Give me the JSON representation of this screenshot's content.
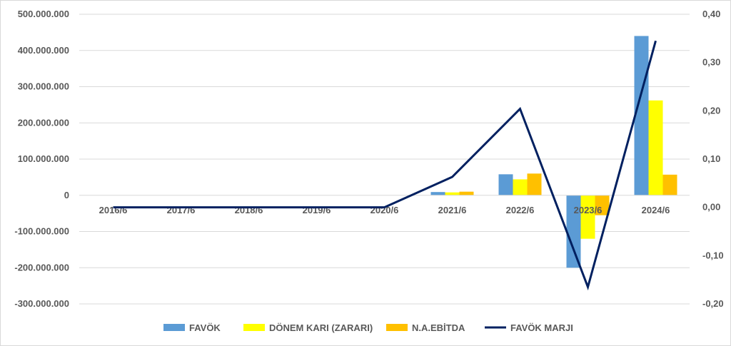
{
  "chart_data": {
    "type": "bar",
    "categories": [
      "2016/6",
      "2017/6",
      "2018/6",
      "2019/6",
      "2020/6",
      "2021/6",
      "2022/6",
      "2023/6",
      "2024/6"
    ],
    "series": [
      {
        "name": "FAVÖK",
        "kind": "bar",
        "axis": "left",
        "color": "#5b9bd5",
        "values": [
          0,
          0,
          0,
          0,
          0,
          9000000,
          58000000,
          -200000000,
          440000000
        ]
      },
      {
        "name": "DÖNEM KARI (ZARARI)",
        "kind": "bar",
        "axis": "left",
        "color": "#ffff00",
        "values": [
          0,
          0,
          0,
          0,
          0,
          8000000,
          44000000,
          -120000000,
          262000000
        ]
      },
      {
        "name": "N.A.EBİTDA",
        "kind": "bar",
        "axis": "left",
        "color": "#ffc000",
        "values": [
          0,
          0,
          0,
          0,
          0,
          10000000,
          60000000,
          -55000000,
          57000000
        ]
      },
      {
        "name": "FAVÖK MARJI",
        "kind": "line",
        "axis": "right",
        "color": "#002060",
        "values": [
          0,
          0,
          0,
          0,
          0,
          0.063,
          0.204,
          -0.165,
          0.345
        ]
      }
    ],
    "y_left": {
      "ylim": [
        -300000000,
        500000000
      ],
      "ticks": [
        500000000,
        400000000,
        300000000,
        200000000,
        100000000,
        0,
        -100000000,
        -200000000,
        -300000000
      ],
      "tick_labels": [
        "500.000.000",
        "400.000.000",
        "300.000.000",
        "200.000.000",
        "100.000.000",
        "0",
        "-100.000.000",
        "-200.000.000",
        "-300.000.000"
      ]
    },
    "y_right": {
      "ylim": [
        -0.2,
        0.4
      ],
      "ticks": [
        0.4,
        0.3,
        0.2,
        0.1,
        0.0,
        -0.1,
        -0.2
      ],
      "tick_labels": [
        "0,40",
        "0,30",
        "0,20",
        "0,10",
        "0,00",
        "-0,10",
        "-0,20"
      ]
    },
    "grid": true,
    "legend_position": "bottom",
    "title": "",
    "xlabel": "",
    "ylabel": ""
  }
}
